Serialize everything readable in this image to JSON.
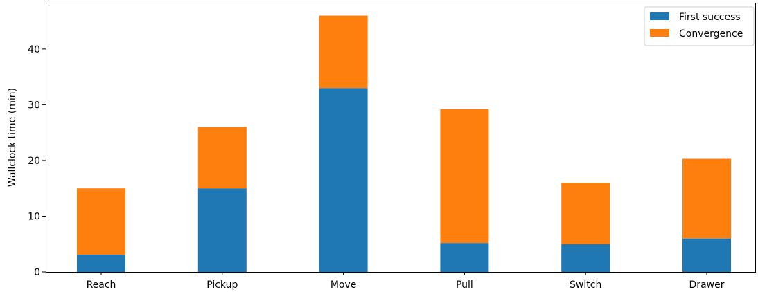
{
  "chart_data": {
    "type": "bar",
    "stacked": true,
    "categories": [
      "Reach",
      "Pickup",
      "Move",
      "Pull",
      "Switch",
      "Drawer"
    ],
    "series": [
      {
        "name": "First success",
        "values": [
          3.1,
          15.0,
          33.0,
          5.2,
          5.0,
          6.0
        ],
        "color": "#1f77b4"
      },
      {
        "name": "Convergence",
        "values": [
          11.9,
          11.0,
          13.0,
          24.0,
          11.0,
          14.3
        ],
        "color": "#ff7f0e"
      }
    ],
    "ylabel": "Wallclock time (min)",
    "ylim": [
      0,
      48.3
    ],
    "yticks": [
      0,
      10,
      20,
      30,
      40
    ],
    "grid": false,
    "legend_position": "top-right"
  }
}
